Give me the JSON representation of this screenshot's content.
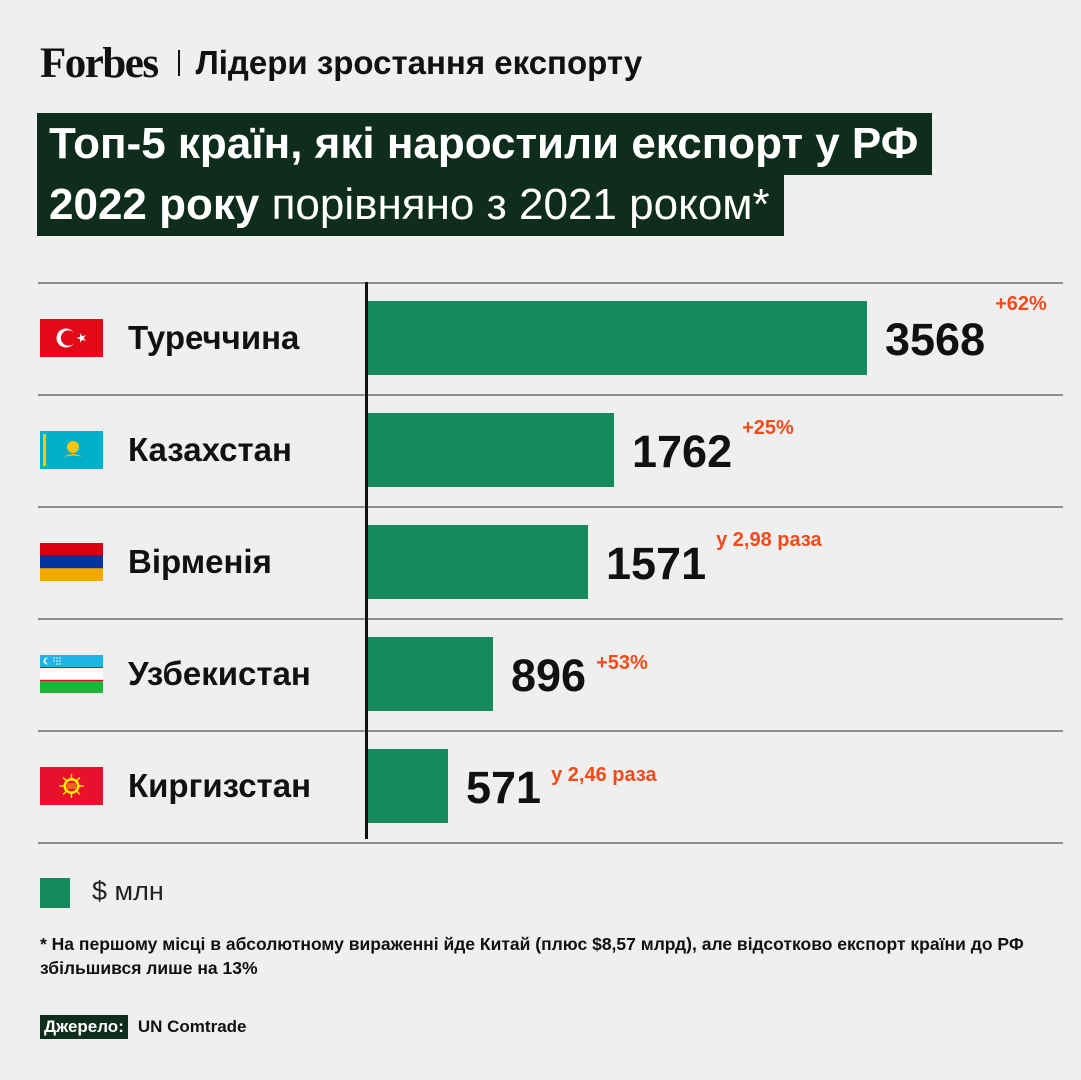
{
  "header": {
    "logo": "Forbes",
    "subtitle": "Лідери зростання експорту"
  },
  "title": {
    "line1": "Топ-5 країн, які наростили експорт у РФ",
    "line2_bold": "2022 року",
    "line2_rest": " порівняно з 2021 роком*"
  },
  "chart_data": {
    "type": "bar",
    "orientation": "horizontal",
    "categories": [
      "Туреччина",
      "Казахстан",
      "Вірменія",
      "Узбекистан",
      "Киргизстан"
    ],
    "values": [
      3568,
      1762,
      1571,
      896,
      571
    ],
    "changes": [
      "+62%",
      "+25%",
      "у 2,98 раза",
      "+53%",
      "у 2,46 раза"
    ],
    "flags": [
      "turkey-flag",
      "kazakhstan-flag",
      "armenia-flag",
      "uzbekistan-flag",
      "kyrgyzstan-flag"
    ],
    "unit": "$ млн",
    "xlim": [
      0,
      3568
    ],
    "colors": {
      "bar": "#158a5c",
      "change": "#f24a1a",
      "title_bg": "#0f2d1c"
    }
  },
  "legend": {
    "label": "$ млн"
  },
  "footnote": "*  На першому місці в абсолютному вираженні йде Китай (плюс $8,57 млрд), але відсотково експорт країни до РФ збільшився лише на 13%",
  "source": {
    "label": "Джерело:",
    "value": "UN Comtrade"
  }
}
